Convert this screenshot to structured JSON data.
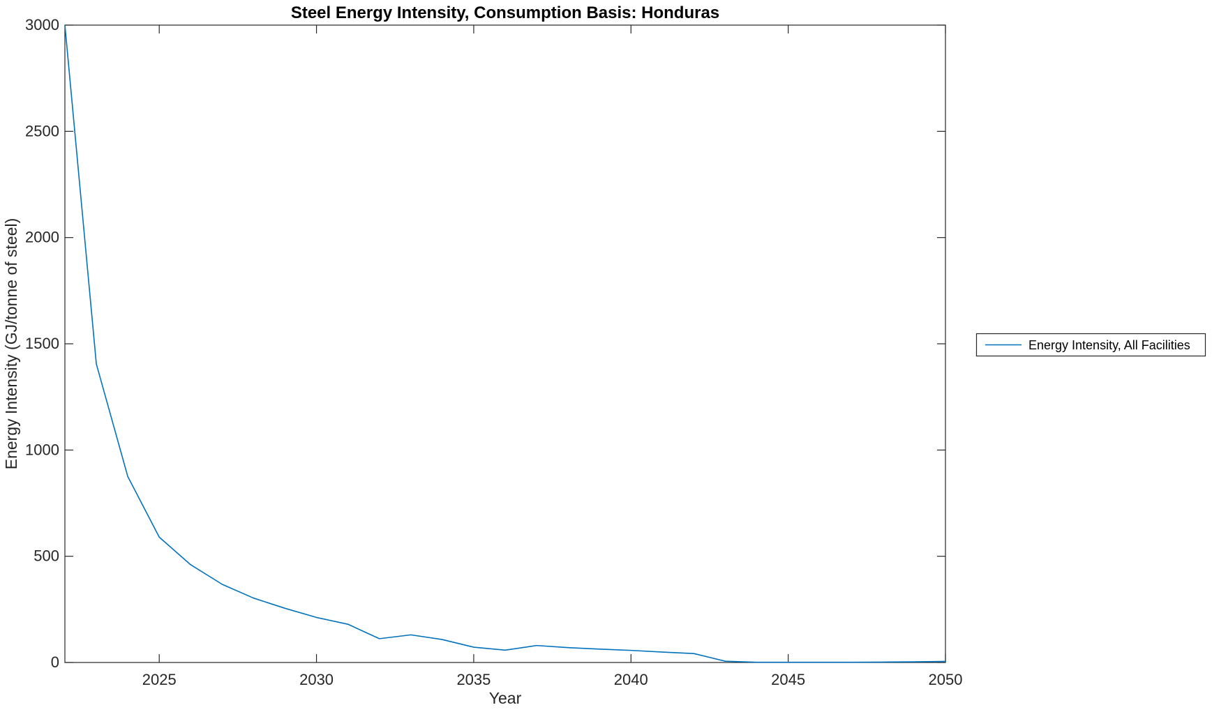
{
  "chart_data": {
    "type": "line",
    "title": "Steel Energy Intensity, Consumption Basis: Honduras",
    "xlabel": "Year",
    "ylabel": "Energy Intensity (GJ/tonne of steel)",
    "xlim": [
      2022,
      2050
    ],
    "ylim": [
      0,
      3000
    ],
    "x_ticks": [
      2025,
      2030,
      2035,
      2040,
      2045,
      2050
    ],
    "y_ticks": [
      0,
      500,
      1000,
      1500,
      2000,
      2500,
      3000
    ],
    "grid": false,
    "box": true,
    "axis_color": "#262626",
    "background": "#ffffff",
    "legend": {
      "position": "outside-right",
      "entries": [
        "Energy Intensity, All Facilities"
      ]
    },
    "series": [
      {
        "name": "Energy Intensity, All Facilities",
        "color": "#0072BD",
        "x": [
          2022,
          2023,
          2024,
          2025,
          2026,
          2027,
          2028,
          2029,
          2030,
          2031,
          2032,
          2033,
          2034,
          2035,
          2036,
          2037,
          2038,
          2039,
          2040,
          2041,
          2042,
          2043,
          2044,
          2045,
          2046,
          2047,
          2048,
          2049,
          2050
        ],
        "values": [
          3000,
          1405,
          875,
          590,
          460,
          368,
          303,
          255,
          212,
          180,
          112,
          130,
          108,
          72,
          58,
          80,
          70,
          63,
          57,
          49,
          42,
          6,
          1,
          1,
          1,
          1,
          2,
          3,
          5
        ]
      }
    ]
  }
}
